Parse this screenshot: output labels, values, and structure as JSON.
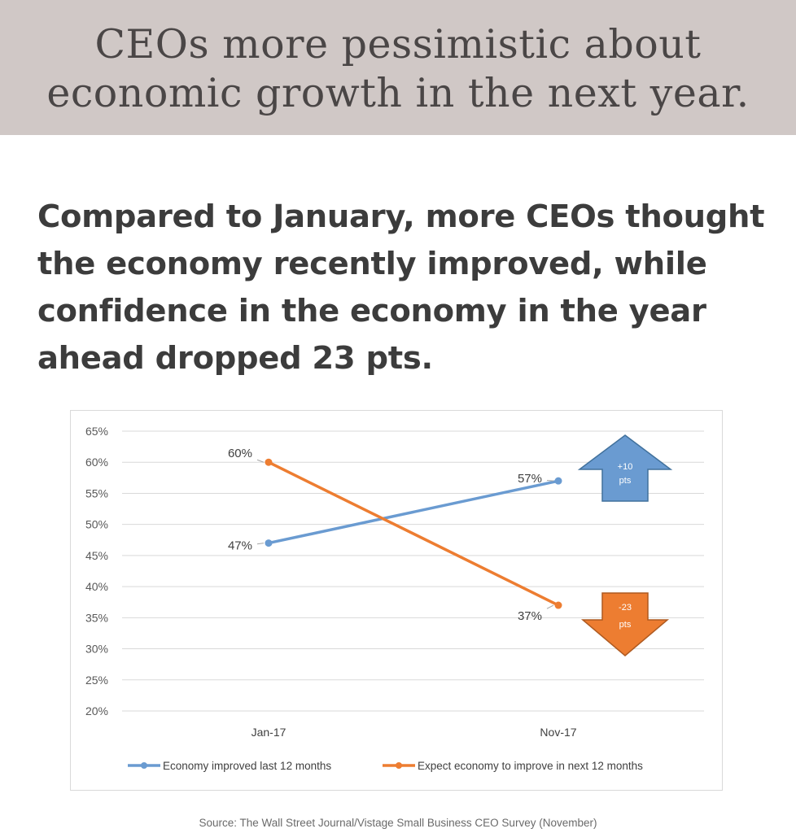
{
  "banner": {
    "line1": "CEOs more pessimistic about",
    "line2": "economic growth in the next year."
  },
  "headline": {
    "lines": [
      "Compared to January, more CEOs thought",
      "the economy recently improved, while",
      "confidence in the economy in the year",
      "ahead dropped 23 pts."
    ]
  },
  "chart_data": {
    "type": "line",
    "categories": [
      "Jan-17",
      "Nov-17"
    ],
    "ylim": [
      20,
      65
    ],
    "y_ticks": [
      "20%",
      "25%",
      "30%",
      "35%",
      "40%",
      "45%",
      "50%",
      "55%",
      "60%",
      "65%"
    ],
    "y_tick_values": [
      20,
      25,
      30,
      35,
      40,
      45,
      50,
      55,
      60,
      65
    ],
    "grid": true,
    "legend_position": "bottom",
    "series": [
      {
        "name": "Economy improved last 12 months",
        "values": [
          47,
          57
        ],
        "labels": [
          "47%",
          "57%"
        ],
        "color": "#6a9bd1"
      },
      {
        "name": "Expect economy to improve in next 12 months",
        "values": [
          60,
          37
        ],
        "labels": [
          "60%",
          "37%"
        ],
        "color": "#ed7d31"
      }
    ],
    "annotations": [
      {
        "series": 0,
        "direction": "up",
        "line1": "+10",
        "line2": "pts",
        "color": "#6a9bd1",
        "border": "#41719c"
      },
      {
        "series": 1,
        "direction": "down",
        "line1": "-23",
        "line2": "pts",
        "color": "#ed7d31",
        "border": "#ae5a21"
      }
    ]
  },
  "source": "Source: The Wall Street Journal/Vistage Small Business CEO Survey (November)"
}
